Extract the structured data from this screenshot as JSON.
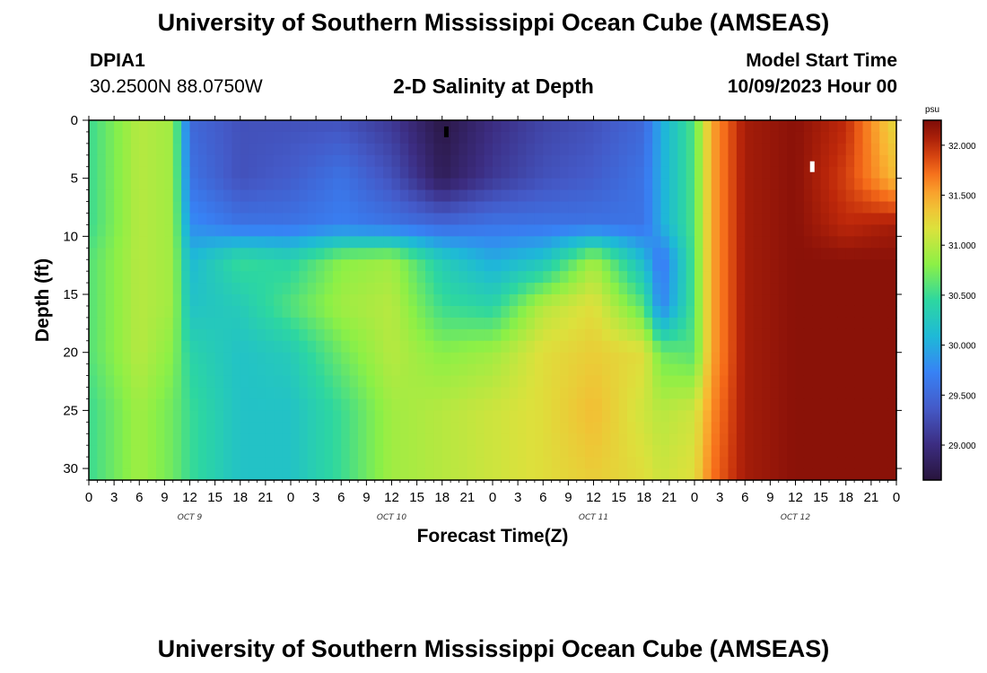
{
  "header": {
    "main_title": "University of Southern Mississippi Ocean Cube (AMSEAS)",
    "station_id": "DPIA1",
    "coordinates": "30.2500N  88.0750W",
    "subtitle": "2-D Salinity at Depth",
    "model_start_label": "Model Start Time",
    "model_start_value": "10/09/2023 Hour 00"
  },
  "footer": {
    "main_title": "University of Southern Mississippi Ocean Cube (AMSEAS)"
  },
  "chart_data": {
    "type": "heatmap",
    "title": "2-D Salinity at Depth",
    "xlabel": "Forecast Time(Z)",
    "ylabel": "Depth (ft)",
    "x_tick_labels": [
      "0",
      "3",
      "6",
      "9",
      "12",
      "15",
      "18",
      "21",
      "0",
      "3",
      "6",
      "9",
      "12",
      "15",
      "18",
      "21",
      "0",
      "3",
      "6",
      "9",
      "12",
      "15",
      "18",
      "21",
      "0",
      "3",
      "6",
      "9",
      "12",
      "15",
      "18",
      "21",
      "0"
    ],
    "x_day_labels": [
      "OCT 9",
      "OCT 10",
      "OCT 11",
      "OCT 12"
    ],
    "x_range_hours": [
      0,
      96
    ],
    "y_ticks": [
      0,
      5,
      10,
      15,
      20,
      25,
      30
    ],
    "y_range_ft": [
      0,
      31
    ],
    "y_inverted": true,
    "colorbar": {
      "unit": "psu",
      "ticks": [
        "29.000",
        "29.500",
        "30.000",
        "30.500",
        "31.000",
        "31.500",
        "32.000"
      ],
      "range": [
        28.65,
        32.25
      ],
      "placement": "right"
    },
    "markers": [
      {
        "hour": 42.5,
        "depth_ft": 1.0,
        "color": "#000000"
      },
      {
        "hour": 86.0,
        "depth_ft": 4.0,
        "color": "#ffffff"
      }
    ],
    "salinity_psu_by_depth": [
      {
        "depth_ft": 0,
        "hours": [
          0,
          6,
          10,
          12,
          18,
          24,
          30,
          36,
          42,
          48,
          54,
          60,
          66,
          68,
          72,
          74,
          78,
          84,
          90,
          96
        ],
        "values": [
          30.5,
          31.0,
          30.9,
          29.5,
          29.3,
          29.3,
          29.3,
          29.1,
          28.7,
          29.0,
          29.2,
          29.3,
          29.5,
          30.0,
          30.6,
          31.5,
          32.1,
          32.2,
          32.0,
          31.2
        ]
      },
      {
        "depth_ft": 5,
        "hours": [
          0,
          6,
          10,
          12,
          18,
          24,
          30,
          36,
          42,
          48,
          54,
          60,
          66,
          68,
          72,
          74,
          78,
          84,
          90,
          96
        ],
        "values": [
          30.5,
          31.0,
          30.9,
          29.6,
          29.3,
          29.4,
          29.6,
          29.3,
          28.8,
          29.1,
          29.3,
          29.4,
          29.6,
          30.0,
          30.6,
          31.5,
          32.1,
          32.2,
          31.9,
          31.4
        ]
      },
      {
        "depth_ft": 9,
        "hours": [
          0,
          6,
          10,
          12,
          18,
          24,
          30,
          36,
          42,
          48,
          54,
          60,
          66,
          68,
          72,
          74,
          78,
          84,
          90,
          96
        ],
        "values": [
          30.5,
          31.0,
          30.9,
          29.8,
          29.6,
          29.6,
          29.7,
          29.6,
          29.5,
          29.6,
          29.6,
          29.6,
          29.6,
          30.0,
          30.6,
          31.5,
          32.1,
          32.2,
          32.0,
          32.1
        ]
      },
      {
        "depth_ft": 12,
        "hours": [
          0,
          6,
          10,
          12,
          18,
          24,
          30,
          36,
          42,
          48,
          54,
          60,
          66,
          68,
          72,
          74,
          78,
          84,
          90,
          96
        ],
        "values": [
          30.6,
          31.0,
          30.9,
          30.1,
          30.5,
          30.4,
          30.8,
          30.9,
          30.3,
          30.0,
          30.2,
          30.9,
          30.1,
          29.6,
          30.6,
          31.5,
          32.1,
          32.2,
          32.2,
          32.2
        ]
      },
      {
        "depth_ft": 16,
        "hours": [
          0,
          6,
          10,
          12,
          18,
          24,
          30,
          36,
          42,
          48,
          54,
          60,
          66,
          68,
          72,
          74,
          78,
          84,
          90,
          96
        ],
        "values": [
          30.6,
          31.0,
          30.9,
          30.2,
          30.3,
          30.6,
          30.9,
          31.0,
          30.5,
          30.4,
          31.0,
          31.2,
          30.6,
          29.7,
          30.6,
          31.5,
          32.1,
          32.2,
          32.2,
          32.2
        ]
      },
      {
        "depth_ft": 20,
        "hours": [
          0,
          6,
          10,
          12,
          18,
          24,
          30,
          36,
          42,
          48,
          54,
          60,
          66,
          68,
          72,
          74,
          78,
          84,
          90,
          96
        ],
        "values": [
          30.6,
          31.0,
          30.8,
          30.4,
          30.2,
          30.3,
          30.7,
          31.0,
          30.8,
          30.9,
          31.2,
          31.3,
          31.2,
          30.7,
          30.6,
          31.5,
          32.1,
          32.2,
          32.2,
          32.2
        ]
      },
      {
        "depth_ft": 25,
        "hours": [
          0,
          6,
          10,
          12,
          18,
          24,
          30,
          36,
          42,
          48,
          54,
          60,
          66,
          68,
          72,
          74,
          78,
          84,
          90,
          96
        ],
        "values": [
          30.5,
          30.9,
          30.7,
          30.5,
          30.2,
          30.2,
          30.5,
          30.9,
          31.0,
          31.1,
          31.2,
          31.4,
          31.1,
          31.0,
          31.1,
          31.6,
          32.1,
          32.2,
          32.2,
          32.2
        ]
      },
      {
        "depth_ft": 31,
        "hours": [
          0,
          6,
          10,
          12,
          18,
          24,
          30,
          36,
          42,
          48,
          54,
          60,
          66,
          68,
          72,
          74,
          78,
          84,
          90,
          96
        ],
        "values": [
          30.5,
          30.9,
          30.7,
          30.5,
          30.2,
          30.2,
          30.5,
          30.9,
          31.0,
          31.1,
          31.2,
          31.3,
          31.2,
          31.1,
          31.2,
          31.7,
          32.1,
          32.2,
          32.2,
          32.2
        ]
      }
    ]
  }
}
